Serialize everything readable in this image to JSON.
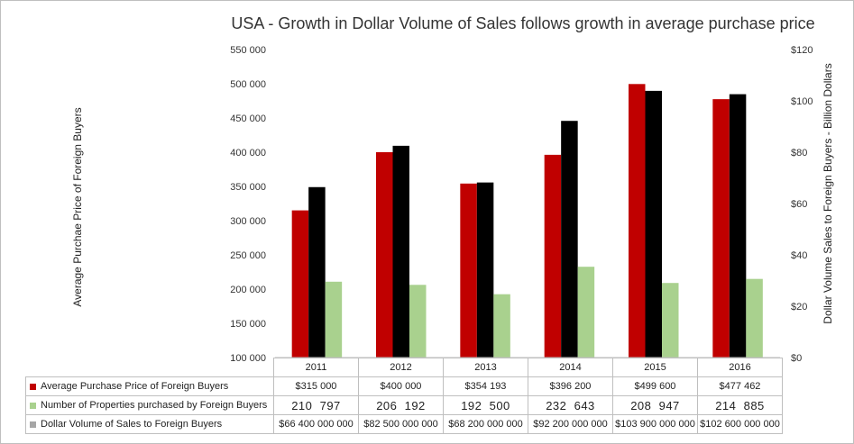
{
  "chart_data": {
    "type": "bar",
    "title": "USA - Growth in Dollar Volume of Sales follows growth in average purchase price",
    "ylabel_left": "Average Purchae Price of Foreign Buyers",
    "ylabel_right": "Dollar Volume Sales to Foreign Buyers - Billion Dollars",
    "categories": [
      "2011",
      "2012",
      "2013",
      "2014",
      "2015",
      "2016"
    ],
    "ylim_left": [
      100000,
      550000
    ],
    "yticks_left": [
      "100 000",
      "150 000",
      "200 000",
      "250 000",
      "300 000",
      "350 000",
      "400 000",
      "450 000",
      "500 000",
      "550 000"
    ],
    "ylim_right": [
      0,
      120
    ],
    "yticks_right": [
      "$0",
      "$20",
      "$40",
      "$60",
      "$80",
      "$100",
      "$120"
    ],
    "grid": false,
    "series": [
      {
        "name": "Average Purchase Price of Foreign Buyers",
        "color": "#c00000",
        "axis": "left",
        "values": [
          315000,
          400000,
          354193,
          396200,
          499600,
          477462
        ],
        "table_values": [
          "$315 000",
          "$400 000",
          "$354 193",
          "$396 200",
          "$499 600",
          "$477 462"
        ]
      },
      {
        "name": "Dollar Volume of Sales to Foreign Buyers",
        "color": "#000000",
        "legend_color": "#a6a6a6",
        "axis": "right",
        "values": [
          66.4,
          82.5,
          68.2,
          92.2,
          103.9,
          102.6
        ],
        "table_values": [
          "$66 400 000 000",
          "$82 500 000 000",
          "$68 200 000 000",
          "$92 200 000 000",
          "$103 900 000 000",
          "$102 600 000 000"
        ]
      },
      {
        "name": "Number of Properties purchased by Foreign Buyers",
        "color": "#a9d18e",
        "axis": "left",
        "values": [
          210797,
          206192,
          192500,
          232643,
          208947,
          214885
        ],
        "table_values": [
          "210  797",
          "206  192",
          "192  500",
          "232  643",
          "208  947",
          "214  885"
        ]
      }
    ],
    "table_row_order": [
      0,
      2,
      1
    ]
  }
}
